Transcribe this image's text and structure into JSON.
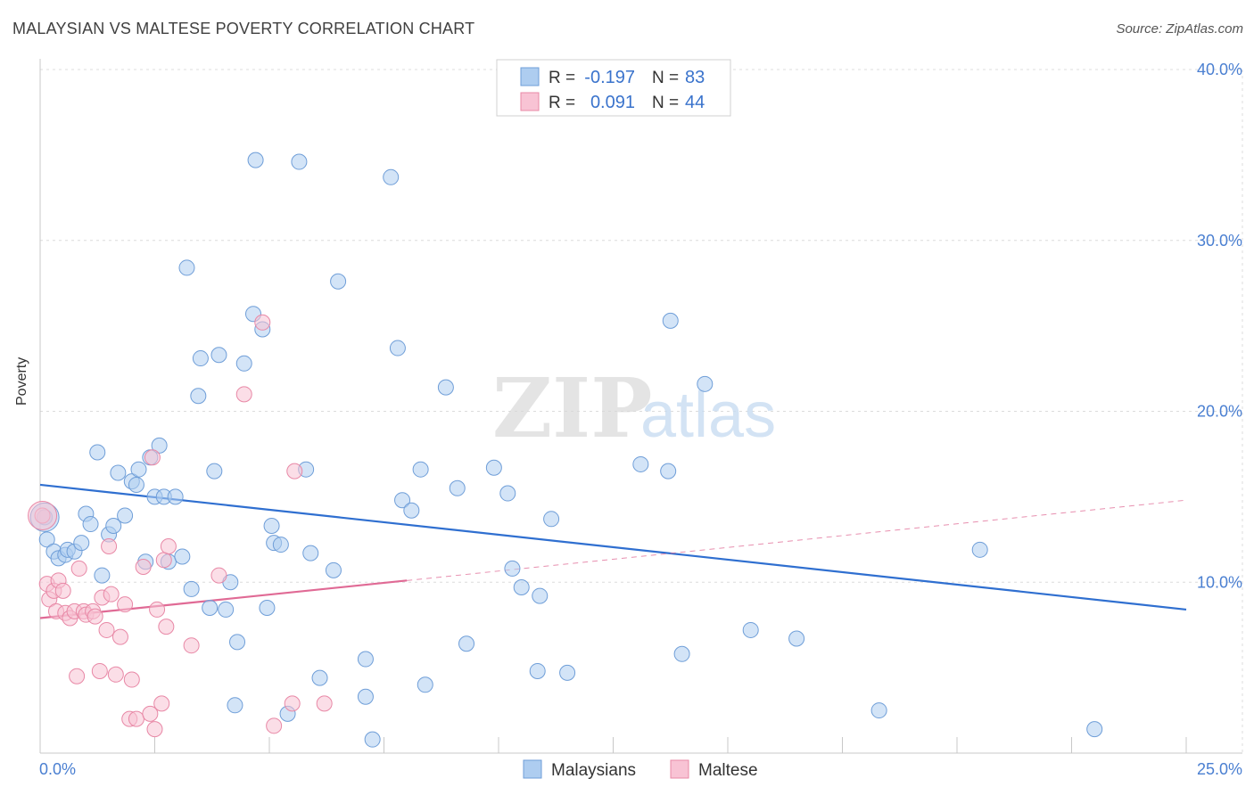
{
  "title": "MALAYSIAN VS MALTESE POVERTY CORRELATION CHART",
  "source": "Source: ZipAtlas.com",
  "watermark": {
    "zip": "ZIP",
    "atlas": "atlas"
  },
  "legend_box": {
    "rows": [
      {
        "r_label": "R =",
        "r_value": "-0.197",
        "n_label": "N =",
        "n_value": "83",
        "color": "#aecdf0",
        "stroke": "#6f9ed8"
      },
      {
        "r_label": "R =",
        "r_value": "0.091",
        "n_label": "N =",
        "n_value": "44",
        "color": "#f8c3d4",
        "stroke": "#e888a6"
      }
    ]
  },
  "chart_data": {
    "type": "scatter",
    "title": "MALAYSIAN VS MALTESE POVERTY CORRELATION CHART",
    "xlabel": "",
    "ylabel": "Poverty",
    "xlim": [
      0,
      25
    ],
    "ylim": [
      0,
      40
    ],
    "x_tick_labels": [
      "0.0%",
      "25.0%"
    ],
    "y_ticks": [
      10,
      20,
      30,
      40
    ],
    "y_tick_labels": [
      "10.0%",
      "20.0%",
      "30.0%",
      "40.0%"
    ],
    "grid": true,
    "legend_position": "bottom-center",
    "series": [
      {
        "name": "Malaysians",
        "color": "#aecdf0",
        "stroke": "#6f9ed8",
        "line_color": "#2f6fd0",
        "trend": {
          "x": [
            0,
            25
          ],
          "y": [
            15.7,
            8.4
          ],
          "dashed_extension": false
        },
        "points": [
          [
            0.1,
            13.8
          ],
          [
            0.15,
            12.5
          ],
          [
            0.3,
            11.8
          ],
          [
            0.4,
            11.4
          ],
          [
            0.55,
            11.6
          ],
          [
            0.6,
            11.9
          ],
          [
            0.75,
            11.8
          ],
          [
            0.9,
            12.3
          ],
          [
            1.0,
            14.0
          ],
          [
            1.1,
            13.4
          ],
          [
            1.25,
            17.6
          ],
          [
            1.35,
            10.4
          ],
          [
            1.5,
            12.8
          ],
          [
            1.6,
            13.3
          ],
          [
            1.7,
            16.4
          ],
          [
            1.85,
            13.9
          ],
          [
            2.0,
            15.9
          ],
          [
            2.1,
            15.7
          ],
          [
            2.15,
            16.6
          ],
          [
            2.3,
            11.2
          ],
          [
            2.4,
            17.3
          ],
          [
            2.5,
            15.0
          ],
          [
            2.6,
            18.0
          ],
          [
            2.7,
            15.0
          ],
          [
            2.8,
            11.2
          ],
          [
            2.95,
            15.0
          ],
          [
            3.1,
            11.5
          ],
          [
            3.2,
            28.4
          ],
          [
            3.3,
            9.6
          ],
          [
            3.45,
            20.9
          ],
          [
            3.5,
            23.1
          ],
          [
            3.7,
            8.5
          ],
          [
            3.8,
            16.5
          ],
          [
            3.9,
            23.3
          ],
          [
            4.05,
            8.4
          ],
          [
            4.15,
            10.0
          ],
          [
            4.3,
            6.5
          ],
          [
            4.25,
            2.8
          ],
          [
            4.45,
            22.8
          ],
          [
            4.65,
            25.7
          ],
          [
            4.7,
            34.7
          ],
          [
            4.85,
            24.8
          ],
          [
            4.95,
            8.5
          ],
          [
            5.05,
            13.3
          ],
          [
            5.1,
            12.3
          ],
          [
            5.25,
            12.2
          ],
          [
            5.4,
            2.3
          ],
          [
            5.65,
            34.6
          ],
          [
            5.8,
            16.6
          ],
          [
            5.9,
            11.7
          ],
          [
            6.1,
            4.4
          ],
          [
            6.4,
            10.7
          ],
          [
            6.5,
            27.6
          ],
          [
            7.1,
            5.5
          ],
          [
            7.1,
            3.3
          ],
          [
            7.25,
            0.8
          ],
          [
            7.65,
            33.7
          ],
          [
            7.8,
            23.7
          ],
          [
            7.9,
            14.8
          ],
          [
            8.1,
            14.2
          ],
          [
            8.3,
            16.6
          ],
          [
            8.4,
            4.0
          ],
          [
            8.85,
            21.4
          ],
          [
            9.1,
            15.5
          ],
          [
            9.3,
            6.4
          ],
          [
            9.9,
            16.7
          ],
          [
            10.2,
            15.2
          ],
          [
            10.3,
            10.8
          ],
          [
            10.5,
            9.7
          ],
          [
            10.85,
            4.8
          ],
          [
            10.9,
            9.2
          ],
          [
            11.15,
            13.7
          ],
          [
            11.5,
            4.7
          ],
          [
            13.1,
            16.9
          ],
          [
            13.7,
            16.5
          ],
          [
            13.75,
            25.3
          ],
          [
            14.0,
            5.8
          ],
          [
            14.5,
            21.6
          ],
          [
            15.5,
            7.2
          ],
          [
            16.5,
            6.7
          ],
          [
            18.3,
            2.5
          ],
          [
            20.5,
            11.9
          ],
          [
            23.0,
            1.4
          ]
        ],
        "large_point": [
          0.1,
          13.8
        ]
      },
      {
        "name": "Maltese",
        "color": "#f8c3d4",
        "stroke": "#e888a6",
        "line_color": "#e06a95",
        "trend": {
          "x": [
            0,
            8
          ],
          "y": [
            7.9,
            10.1
          ],
          "dashed_extension": true,
          "extension_to": [
            25,
            14.8
          ]
        },
        "points": [
          [
            0.05,
            13.9
          ],
          [
            0.15,
            9.9
          ],
          [
            0.2,
            9.0
          ],
          [
            0.3,
            9.5
          ],
          [
            0.35,
            8.3
          ],
          [
            0.4,
            10.1
          ],
          [
            0.5,
            9.5
          ],
          [
            0.55,
            8.2
          ],
          [
            0.65,
            7.9
          ],
          [
            0.75,
            8.3
          ],
          [
            0.8,
            4.5
          ],
          [
            0.85,
            10.8
          ],
          [
            0.95,
            8.3
          ],
          [
            1.0,
            8.1
          ],
          [
            1.15,
            8.3
          ],
          [
            1.2,
            8.0
          ],
          [
            1.3,
            4.8
          ],
          [
            1.35,
            9.1
          ],
          [
            1.45,
            7.2
          ],
          [
            1.5,
            12.1
          ],
          [
            1.55,
            9.3
          ],
          [
            1.65,
            4.6
          ],
          [
            1.75,
            6.8
          ],
          [
            1.85,
            8.7
          ],
          [
            1.95,
            2.0
          ],
          [
            2.0,
            4.3
          ],
          [
            2.1,
            2.0
          ],
          [
            2.25,
            10.9
          ],
          [
            2.4,
            2.3
          ],
          [
            2.45,
            17.3
          ],
          [
            2.5,
            1.4
          ],
          [
            2.55,
            8.4
          ],
          [
            2.65,
            2.9
          ],
          [
            2.7,
            11.3
          ],
          [
            2.75,
            7.4
          ],
          [
            2.8,
            12.1
          ],
          [
            3.3,
            6.3
          ],
          [
            3.9,
            10.4
          ],
          [
            4.45,
            21.0
          ],
          [
            4.85,
            25.2
          ],
          [
            5.1,
            1.6
          ],
          [
            5.5,
            2.9
          ],
          [
            5.55,
            16.5
          ],
          [
            6.2,
            2.9
          ]
        ],
        "large_point": [
          0.05,
          13.9
        ]
      }
    ]
  },
  "legend": {
    "items": [
      "Malaysians",
      "Maltese"
    ]
  }
}
